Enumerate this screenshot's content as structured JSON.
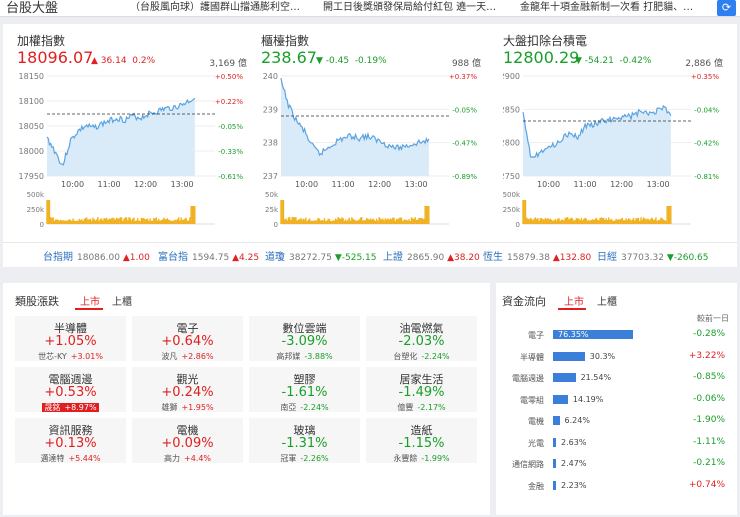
{
  "app_title": "台股大盤",
  "news": [
    "（台股風向球）護國群山擋通膨利空…",
    "開工日後獎頒發保局給付紅包 遶一天…",
    "金龍年十項金融新制一次看 打肥貓、…"
  ],
  "refresh_icon": "refresh-icon",
  "indices": [
    {
      "name": "加權指數",
      "value": "18096.07",
      "change": "▲ 36.14",
      "pct": "0.2%",
      "dir": "up",
      "volume": "3,169 億",
      "y_labels": [
        "18150",
        "18100",
        "18050",
        "18000",
        "17950"
      ],
      "y_pct": [
        "+0.50%",
        "+0.22%",
        "-0.05%",
        "-0.33%",
        "-0.61%"
      ],
      "vol_labels": [
        "500k",
        "250k",
        "0"
      ],
      "x_labels": [
        "10:00",
        "11:00",
        "12:00",
        "13:00"
      ]
    },
    {
      "name": "櫃檯指數",
      "value": "238.67",
      "change": "▼ -0.45",
      "pct": "-0.19%",
      "dir": "down",
      "volume": "988 億",
      "y_labels": [
        "240",
        "239",
        "238",
        "237"
      ],
      "y_pct": [
        "+0.37%",
        "-0.05%",
        "-0.47%",
        "-0.89%"
      ],
      "vol_labels": [
        "50k",
        "25k",
        "0"
      ],
      "x_labels": [
        "10:00",
        "11:00",
        "12:00",
        "13:00"
      ]
    },
    {
      "name": "大盤扣除台積電",
      "value": "12800.29",
      "change": "▼ -54.21",
      "pct": "-0.42%",
      "dir": "down",
      "volume": "2,886 億",
      "y_labels": [
        "12900",
        "12850",
        "12800",
        "12750"
      ],
      "y_pct": [
        "+0.35%",
        "-0.04%",
        "-0.42%",
        "-0.81%"
      ],
      "vol_labels": [
        "500k",
        "250k",
        "0"
      ],
      "x_labels": [
        "10:00",
        "11:00",
        "12:00",
        "13:00"
      ]
    }
  ],
  "ticker": [
    {
      "name": "台指期",
      "value": "18086.00",
      "change": "▲1.00",
      "dir": "up"
    },
    {
      "name": "富台指",
      "value": "1594.75",
      "change": "▲4.25",
      "dir": "up"
    },
    {
      "name": "道瓊",
      "value": "38272.75",
      "change": "▼-525.15",
      "dir": "down"
    },
    {
      "name": "上證",
      "value": "2865.90",
      "change": "▲38.20",
      "dir": "up"
    },
    {
      "name": "恆生",
      "value": "15879.38",
      "change": "▲132.80",
      "dir": "up"
    },
    {
      "name": "日經",
      "value": "37703.32",
      "change": "▼-260.65",
      "dir": "down"
    }
  ],
  "sectors": {
    "title": "類股漲跌",
    "tab_listed": "上市",
    "tab_otc": "上櫃",
    "cards": [
      {
        "name": "半導體",
        "pct": "+1.05%",
        "dir": "up",
        "stock": "世芯-KY",
        "stock_pct": "+3.01%",
        "sdir": "up",
        "hl": false
      },
      {
        "name": "電子",
        "pct": "+0.64%",
        "dir": "up",
        "stock": "波凡",
        "stock_pct": "+2.86%",
        "sdir": "up",
        "hl": false
      },
      {
        "name": "數位雲端",
        "pct": "-3.09%",
        "dir": "down",
        "stock": "高邦媒",
        "stock_pct": "-3.88%",
        "sdir": "down",
        "hl": false
      },
      {
        "name": "油電燃氣",
        "pct": "-2.03%",
        "dir": "down",
        "stock": "台塑化",
        "stock_pct": "-2.24%",
        "sdir": "down",
        "hl": false
      },
      {
        "name": "電腦週邊",
        "pct": "+0.53%",
        "dir": "up",
        "stock": "晟銘",
        "stock_pct": "+8.97%",
        "sdir": "up",
        "hl": true
      },
      {
        "name": "觀光",
        "pct": "+0.24%",
        "dir": "up",
        "stock": "雄獅",
        "stock_pct": "+1.95%",
        "sdir": "up",
        "hl": false
      },
      {
        "name": "塑膠",
        "pct": "-1.61%",
        "dir": "down",
        "stock": "南亞",
        "stock_pct": "-2.24%",
        "sdir": "down",
        "hl": false
      },
      {
        "name": "居家生活",
        "pct": "-1.49%",
        "dir": "down",
        "stock": "億豐",
        "stock_pct": "-2.17%",
        "sdir": "down",
        "hl": false
      },
      {
        "name": "資訊服務",
        "pct": "+0.13%",
        "dir": "up",
        "stock": "邁達特",
        "stock_pct": "+5.44%",
        "sdir": "up",
        "hl": false
      },
      {
        "name": "電機",
        "pct": "+0.09%",
        "dir": "up",
        "stock": "高力",
        "stock_pct": "+4.4%",
        "sdir": "up",
        "hl": false
      },
      {
        "name": "玻璃",
        "pct": "-1.31%",
        "dir": "down",
        "stock": "冠軍",
        "stock_pct": "-2.26%",
        "sdir": "down",
        "hl": false
      },
      {
        "name": "造紙",
        "pct": "-1.15%",
        "dir": "down",
        "stock": "永豐餘",
        "stock_pct": "-1.99%",
        "sdir": "down",
        "hl": false
      }
    ]
  },
  "flow": {
    "title": "資金流向",
    "tab_listed": "上市",
    "tab_otc": "上櫃",
    "col_header": "較前一日",
    "rows": [
      {
        "name": "電子",
        "pct": "76.35%",
        "share": 76.35,
        "change": "-0.28%",
        "dir": "down"
      },
      {
        "name": "半導體",
        "pct": "30.3%",
        "share": 30.3,
        "change": "+3.22%",
        "dir": "up"
      },
      {
        "name": "電腦週邊",
        "pct": "21.54%",
        "share": 21.54,
        "change": "-0.85%",
        "dir": "down"
      },
      {
        "name": "電零組",
        "pct": "14.19%",
        "share": 14.19,
        "change": "-0.06%",
        "dir": "down"
      },
      {
        "name": "電機",
        "pct": "6.24%",
        "share": 6.24,
        "change": "-1.90%",
        "dir": "down"
      },
      {
        "name": "光電",
        "pct": "2.63%",
        "share": 2.63,
        "change": "-1.11%",
        "dir": "down"
      },
      {
        "name": "通信網路",
        "pct": "2.47%",
        "share": 2.47,
        "change": "-0.21%",
        "dir": "down"
      },
      {
        "name": "金融",
        "pct": "2.23%",
        "share": 2.23,
        "change": "+0.74%",
        "dir": "up"
      }
    ]
  },
  "colors": {
    "up": "#e02020",
    "down": "#1a9e2a",
    "accent": "#2f7ff0",
    "line": "#5ba3e0",
    "area": "#d9eaf9",
    "volume": "#f0b020"
  }
}
